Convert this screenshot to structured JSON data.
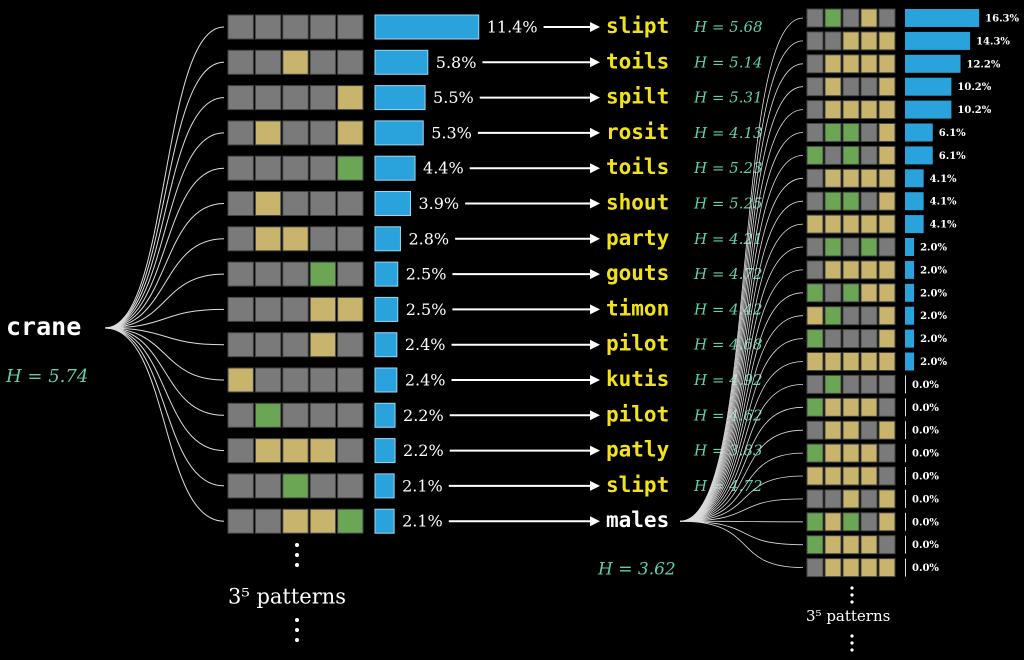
{
  "root": {
    "word": "crane",
    "entropy_label": "H = 5.74"
  },
  "tile_colors": {
    "g": "#7a7a7a",
    "y": "#c8b46c",
    "G": "#6aa653"
  },
  "bar_color": "#2aa3dc",
  "left_rows": [
    {
      "pattern": "ggggg",
      "probability": 11.4,
      "probability_label": "11.4%",
      "next_guess": "slipt",
      "entropy_label": "H = 5.68"
    },
    {
      "pattern": "ggygg",
      "probability": 5.8,
      "probability_label": "5.8%",
      "next_guess": "toils",
      "entropy_label": "H = 5.14"
    },
    {
      "pattern": "ggggy",
      "probability": 5.5,
      "probability_label": "5.5%",
      "next_guess": "spilt",
      "entropy_label": "H = 5.31"
    },
    {
      "pattern": "gyggy",
      "probability": 5.3,
      "probability_label": "5.3%",
      "next_guess": "rosit",
      "entropy_label": "H = 4.13"
    },
    {
      "pattern": "ggggG",
      "probability": 4.4,
      "probability_label": "4.4%",
      "next_guess": "toils",
      "entropy_label": "H = 5.23"
    },
    {
      "pattern": "gyggg",
      "probability": 3.9,
      "probability_label": "3.9%",
      "next_guess": "shout",
      "entropy_label": "H = 5.25"
    },
    {
      "pattern": "gyygg",
      "probability": 2.8,
      "probability_label": "2.8%",
      "next_guess": "party",
      "entropy_label": "H = 4.21"
    },
    {
      "pattern": "gggGg",
      "probability": 2.5,
      "probability_label": "2.5%",
      "next_guess": "gouts",
      "entropy_label": "H = 4.72"
    },
    {
      "pattern": "gggyy",
      "probability": 2.5,
      "probability_label": "2.5%",
      "next_guess": "timon",
      "entropy_label": "H = 4.42"
    },
    {
      "pattern": "gggyg",
      "probability": 2.4,
      "probability_label": "2.4%",
      "next_guess": "pilot",
      "entropy_label": "H = 4.68"
    },
    {
      "pattern": "ygggg",
      "probability": 2.4,
      "probability_label": "2.4%",
      "next_guess": "kutis",
      "entropy_label": "H = 4.92"
    },
    {
      "pattern": "gGggg",
      "probability": 2.2,
      "probability_label": "2.2%",
      "next_guess": "pilot",
      "entropy_label": "H = 4.62"
    },
    {
      "pattern": "gyyyg",
      "probability": 2.2,
      "probability_label": "2.2%",
      "next_guess": "patly",
      "entropy_label": "H = 3.83"
    },
    {
      "pattern": "ggGgg",
      "probability": 2.1,
      "probability_label": "2.1%",
      "next_guess": "slipt",
      "entropy_label": "H = 4.72"
    },
    {
      "pattern": "ggyyG",
      "probability": 2.1,
      "probability_label": "2.1%",
      "next_guess": "males"
    }
  ],
  "expanded": {
    "word": "males",
    "entropy_label": "H = 3.62"
  },
  "right_rows": [
    {
      "pattern": "gGgyg",
      "probability": 16.3,
      "probability_label": "16.3%"
    },
    {
      "pattern": "ggyyy",
      "probability": 14.3,
      "probability_label": "14.3%"
    },
    {
      "pattern": "gyyyy",
      "probability": 12.2,
      "probability_label": "12.2%"
    },
    {
      "pattern": "gyggy",
      "probability": 10.2,
      "probability_label": "10.2%"
    },
    {
      "pattern": "gyyyy",
      "probability": 10.2,
      "probability_label": "10.2%"
    },
    {
      "pattern": "gGGgy",
      "probability": 6.1,
      "probability_label": "6.1%"
    },
    {
      "pattern": "GgGgy",
      "probability": 6.1,
      "probability_label": "6.1%"
    },
    {
      "pattern": "gyyyy",
      "probability": 4.1,
      "probability_label": "4.1%"
    },
    {
      "pattern": "gGGgy",
      "probability": 4.1,
      "probability_label": "4.1%"
    },
    {
      "pattern": "yyyyy",
      "probability": 4.1,
      "probability_label": "4.1%"
    },
    {
      "pattern": "gGgGg",
      "probability": 2.0,
      "probability_label": "2.0%"
    },
    {
      "pattern": "gyyyy",
      "probability": 2.0,
      "probability_label": "2.0%"
    },
    {
      "pattern": "GgGyy",
      "probability": 2.0,
      "probability_label": "2.0%"
    },
    {
      "pattern": "yGggy",
      "probability": 2.0,
      "probability_label": "2.0%"
    },
    {
      "pattern": "Ggggy",
      "probability": 2.0,
      "probability_label": "2.0%"
    },
    {
      "pattern": "yyyyy",
      "probability": 2.0,
      "probability_label": "2.0%"
    },
    {
      "pattern": "gGggg",
      "probability": 0.0,
      "probability_label": "0.0%"
    },
    {
      "pattern": "Gyyyg",
      "probability": 0.0,
      "probability_label": "0.0%"
    },
    {
      "pattern": "gyygy",
      "probability": 0.0,
      "probability_label": "0.0%"
    },
    {
      "pattern": "Gyyyg",
      "probability": 0.0,
      "probability_label": "0.0%"
    },
    {
      "pattern": "yyyyg",
      "probability": 0.0,
      "probability_label": "0.0%"
    },
    {
      "pattern": "ggygy",
      "probability": 0.0,
      "probability_label": "0.0%"
    },
    {
      "pattern": "GyGgy",
      "probability": 0.0,
      "probability_label": "0.0%"
    },
    {
      "pattern": "Gyyyg",
      "probability": 0.0,
      "probability_label": "0.0%"
    },
    {
      "pattern": "gyyyy",
      "probability": 0.0,
      "probability_label": "0.0%"
    }
  ],
  "left_footer": "3⁵ patterns",
  "right_footer": "3⁵ patterns"
}
